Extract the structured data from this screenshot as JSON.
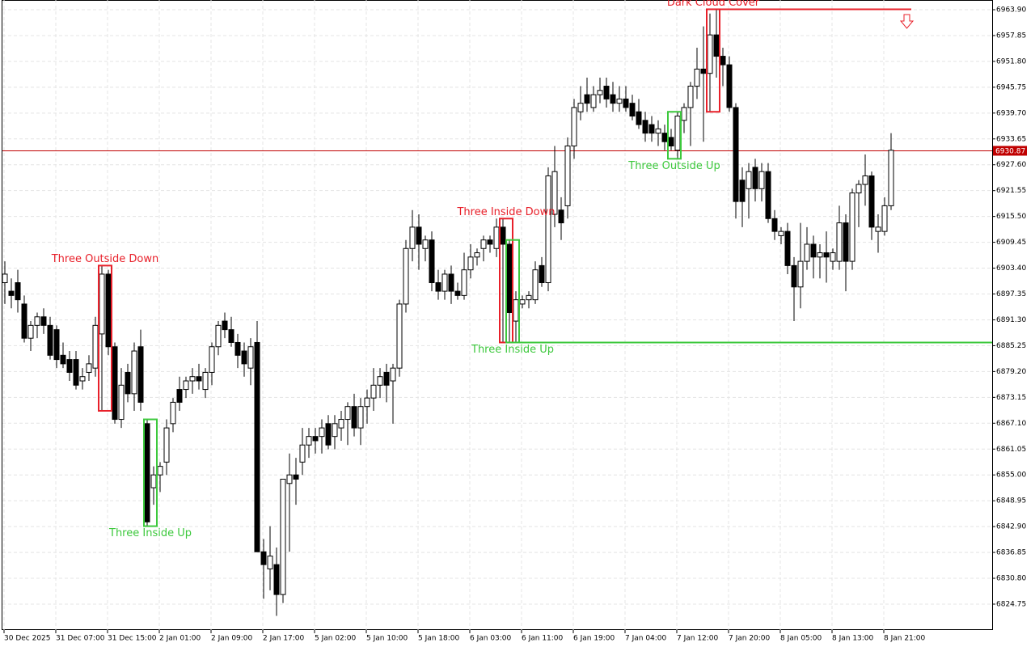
{
  "chart_data": {
    "type": "candlestick",
    "categories": [
      "30 Dec 2025",
      null,
      null,
      null,
      null,
      null,
      null,
      null,
      "31 Dec 07:00",
      null,
      null,
      null,
      null,
      null,
      null,
      null,
      "31 Dec 15:00",
      null,
      null,
      null,
      null,
      null,
      null,
      null,
      "2 Jan 01:00",
      null,
      null,
      null,
      null,
      null,
      null,
      null,
      "2 Jan 09:00",
      null,
      null,
      null,
      null,
      null,
      null,
      null,
      "2 Jan 17:00",
      null,
      null,
      null,
      null,
      null,
      null,
      null,
      "5 Jan 02:00",
      null,
      null,
      null,
      null,
      null,
      null,
      null,
      "5 Jan 10:00",
      null,
      null,
      null,
      null,
      null,
      null,
      null,
      "5 Jan 18:00",
      null,
      null,
      null,
      null,
      null,
      null,
      null,
      "6 Jan 03:00",
      null,
      null,
      null,
      null,
      null,
      null,
      null,
      "6 Jan 11:00",
      null,
      null,
      null,
      null,
      null,
      null,
      null,
      "6 Jan 19:00",
      null,
      null,
      null,
      null,
      null,
      null,
      null,
      "7 Jan 04:00",
      null,
      null,
      null,
      null,
      null,
      null,
      null,
      "7 Jan 12:00",
      null,
      null,
      null,
      null,
      null,
      null,
      null,
      "7 Jan 20:00",
      null,
      null,
      null,
      null,
      null,
      null,
      null,
      "8 Jan 05:00",
      null,
      null,
      null,
      null,
      null,
      null,
      null,
      "8 Jan 13:00",
      null,
      null,
      null,
      null,
      null,
      null,
      null,
      "8 Jan 21:00",
      null
    ],
    "ohlc": [
      [
        6900,
        6905,
        6895,
        6902
      ],
      [
        6898,
        6901,
        6894,
        6897
      ],
      [
        6900,
        6903,
        6893,
        6896
      ],
      [
        6895,
        6897,
        6886,
        6887
      ],
      [
        6887,
        6891,
        6884,
        6890
      ],
      [
        6890,
        6893,
        6887,
        6892
      ],
      [
        6892,
        6894,
        6888,
        6890
      ],
      [
        6890,
        6892,
        6882,
        6883
      ],
      [
        6889,
        6890,
        6880,
        6882
      ],
      [
        6883,
        6886,
        6880,
        6881
      ],
      [
        6882,
        6884,
        6877,
        6879
      ],
      [
        6882,
        6884,
        6875,
        6876
      ],
      [
        6877,
        6880,
        6875,
        6878
      ],
      [
        6879,
        6883,
        6877,
        6881
      ],
      [
        6880,
        6892,
        6878,
        6890
      ],
      [
        6888,
        6904,
        6870,
        6902
      ],
      [
        6902,
        6903,
        6883,
        6885
      ],
      [
        6885,
        6886,
        6867,
        6868
      ],
      [
        6868,
        6880,
        6866,
        6876
      ],
      [
        6879,
        6881,
        6872,
        6874
      ],
      [
        6874,
        6886,
        6870,
        6884
      ],
      [
        6885,
        6889,
        6870,
        6872
      ],
      [
        6867,
        6868,
        6843,
        6844
      ],
      [
        6852,
        6857,
        6848,
        6855
      ],
      [
        6855,
        6858,
        6851,
        6857
      ],
      [
        6858,
        6868,
        6855,
        6866
      ],
      [
        6867,
        6873,
        6865,
        6872
      ],
      [
        6875,
        6878,
        6870,
        6872
      ],
      [
        6875,
        6878,
        6873,
        6877
      ],
      [
        6877,
        6880,
        6874,
        6878
      ],
      [
        6878,
        6881,
        6875,
        6877
      ],
      [
        6875,
        6880,
        6873,
        6879
      ],
      [
        6879,
        6886,
        6876,
        6885
      ],
      [
        6885,
        6891,
        6883,
        6890
      ],
      [
        6891,
        6893,
        6887,
        6889
      ],
      [
        6889,
        6892,
        6885,
        6886
      ],
      [
        6886,
        6888,
        6880,
        6883
      ],
      [
        6884,
        6886,
        6878,
        6881
      ],
      [
        6880,
        6887,
        6876,
        6885
      ],
      [
        6886,
        6891,
        6837,
        6837
      ],
      [
        6837,
        6840,
        6826,
        6834
      ],
      [
        6833,
        6843,
        6828,
        6836
      ],
      [
        6834,
        6838,
        6822,
        6827
      ],
      [
        6827,
        6854,
        6825,
        6854
      ],
      [
        6853,
        6860,
        6837,
        6855
      ],
      [
        6855,
        6859,
        6848,
        6854
      ],
      [
        6858,
        6866,
        6855,
        6862
      ],
      [
        6862,
        6866,
        6859,
        6864
      ],
      [
        6864,
        6866,
        6860,
        6863
      ],
      [
        6864,
        6868,
        6860,
        6866
      ],
      [
        6867,
        6869,
        6861,
        6862
      ],
      [
        6864,
        6869,
        6861,
        6867
      ],
      [
        6866,
        6870,
        6863,
        6868
      ],
      [
        6868,
        6872,
        6862,
        6871
      ],
      [
        6871,
        6874,
        6864,
        6866
      ],
      [
        6866,
        6873,
        6862,
        6871
      ],
      [
        6871,
        6875,
        6867,
        6873
      ],
      [
        6873,
        6880,
        6870,
        6876
      ],
      [
        6876,
        6880,
        6873,
        6878
      ],
      [
        6879,
        6881,
        6872,
        6876
      ],
      [
        6877,
        6881,
        6867,
        6880
      ],
      [
        6880,
        6896,
        6878,
        6895
      ],
      [
        6895,
        6910,
        6893,
        6908
      ],
      [
        6908,
        6917,
        6905,
        6913
      ],
      [
        6913,
        6916,
        6903,
        6909
      ],
      [
        6908,
        6911,
        6905,
        6910
      ],
      [
        6910,
        6912,
        6898,
        6900
      ],
      [
        6900,
        6903,
        6896,
        6898
      ],
      [
        6898,
        6903,
        6896,
        6902
      ],
      [
        6902,
        6904,
        6895,
        6898
      ],
      [
        6898,
        6900,
        6896,
        6897
      ],
      [
        6897,
        6907,
        6896,
        6903
      ],
      [
        6903,
        6909,
        6901,
        6906
      ],
      [
        6906,
        6908,
        6904,
        6907
      ],
      [
        6908,
        6911,
        6905,
        6910
      ],
      [
        6910,
        6911,
        6907,
        6909
      ],
      [
        6908,
        6915,
        6906,
        6913
      ],
      [
        6913,
        6915,
        6886,
        6909
      ],
      [
        6909,
        6910,
        6886,
        6893
      ],
      [
        6891,
        6898,
        6886,
        6896
      ],
      [
        6895,
        6897,
        6894,
        6896
      ],
      [
        6896,
        6898,
        6894,
        6897
      ],
      [
        6896,
        6905,
        6895,
        6903
      ],
      [
        6904,
        6906,
        6899,
        6900
      ],
      [
        6900,
        6927,
        6898,
        6925
      ],
      [
        6916,
        6932,
        6913,
        6926
      ],
      [
        6917,
        6920,
        6910,
        6914
      ],
      [
        6918,
        6934,
        6915,
        6932
      ],
      [
        6932,
        6943,
        6929,
        6941
      ],
      [
        6940,
        6946,
        6938,
        6942
      ],
      [
        6944,
        6948,
        6940,
        6942
      ],
      [
        6941,
        6946,
        6940,
        6944
      ],
      [
        6944,
        6948,
        6942,
        6945
      ],
      [
        6946,
        6948,
        6941,
        6943
      ],
      [
        6944,
        6947,
        6940,
        6942
      ],
      [
        6942,
        6946,
        6940,
        6943
      ],
      [
        6943,
        6946,
        6940,
        6941
      ],
      [
        6942,
        6944,
        6938,
        6939
      ],
      [
        6940,
        6943,
        6936,
        6937
      ],
      [
        6938,
        6940,
        6933,
        6935
      ],
      [
        6937,
        6939,
        6933,
        6935
      ],
      [
        6935,
        6938,
        6932,
        6936
      ],
      [
        6935,
        6937,
        6931,
        6933
      ],
      [
        6934,
        6936,
        6931,
        6932
      ],
      [
        6931,
        6940,
        6929,
        6939
      ],
      [
        6938,
        6942,
        6935,
        6941
      ],
      [
        6941,
        6947,
        6932,
        6946
      ],
      [
        6946,
        6955,
        6943,
        6950
      ],
      [
        6950,
        6960,
        6933,
        6949
      ],
      [
        6949,
        6963,
        6940,
        6958
      ],
      [
        6958,
        6964,
        6948,
        6953
      ],
      [
        6953,
        6955,
        6946,
        6951
      ],
      [
        6951,
        6953,
        6940,
        6941
      ],
      [
        6941,
        6942,
        6915,
        6919
      ],
      [
        6924,
        6927,
        6913,
        6919
      ],
      [
        6922,
        6928,
        6915,
        6926
      ],
      [
        6927,
        6929,
        6919,
        6922
      ],
      [
        6922,
        6928,
        6919,
        6926
      ],
      [
        6926,
        6928,
        6914,
        6915
      ],
      [
        6915,
        6917,
        6910,
        6912
      ],
      [
        6911,
        6913,
        6909,
        6912
      ],
      [
        6912,
        6914,
        6902,
        6904
      ],
      [
        6904,
        6906,
        6891,
        6899
      ],
      [
        6899,
        6914,
        6894,
        6905
      ],
      [
        6905,
        6913,
        6903,
        6909
      ],
      [
        6909,
        6911,
        6901,
        6906
      ],
      [
        6906,
        6909,
        6901,
        6907
      ],
      [
        6907,
        6912,
        6900,
        6906
      ],
      [
        6905,
        6908,
        6903,
        6907
      ],
      [
        6905,
        6918,
        6903,
        6914
      ],
      [
        6914,
        6916,
        6898,
        6905
      ],
      [
        6905,
        6922,
        6903,
        6921
      ],
      [
        6921,
        6924,
        6913,
        6923
      ],
      [
        6923,
        6930,
        6918,
        6925
      ],
      [
        6925,
        6926,
        6910,
        6913
      ],
      [
        6912,
        6916,
        6907,
        6913
      ],
      [
        6912,
        6920,
        6911,
        6918
      ],
      [
        6918,
        6935,
        6917,
        6931
      ]
    ],
    "ylim": [
      6818.69,
      6966.17
    ],
    "yticks": [
      {
        "value": 6963.9,
        "label": "6963.90"
      },
      {
        "value": 6957.85,
        "label": "6957.85"
      },
      {
        "value": 6951.8,
        "label": "6951.80"
      },
      {
        "value": 6945.75,
        "label": "6945.75"
      },
      {
        "value": 6939.7,
        "label": "6939.70"
      },
      {
        "value": 6933.65,
        "label": "6933.65"
      },
      {
        "value": 6927.6,
        "label": "6927.60"
      },
      {
        "value": 6921.55,
        "label": "6921.55"
      },
      {
        "value": 6915.5,
        "label": "6915.50"
      },
      {
        "value": 6909.45,
        "label": "6909.45"
      },
      {
        "value": 6903.4,
        "label": "6903.40"
      },
      {
        "value": 6897.35,
        "label": "6897.35"
      },
      {
        "value": 6891.3,
        "label": "6891.30"
      },
      {
        "value": 6885.25,
        "label": "6885.25"
      },
      {
        "value": 6879.2,
        "label": "6879.20"
      },
      {
        "value": 6873.15,
        "label": "6873.15"
      },
      {
        "value": 6867.1,
        "label": "6867.10"
      },
      {
        "value": 6861.05,
        "label": "6861.05"
      },
      {
        "value": 6855,
        "label": "6855.00"
      },
      {
        "value": 6848.95,
        "label": "6848.95"
      },
      {
        "value": 6842.9,
        "label": "6842.90"
      },
      {
        "value": 6836.85,
        "label": "6836.85"
      },
      {
        "value": 6830.8,
        "label": "6830.80"
      },
      {
        "value": 6824.75,
        "label": "6824.75"
      }
    ],
    "price_line": {
      "value": 6930.87,
      "color": "#c00000"
    },
    "grid": true,
    "patterns": [
      {
        "label": "Three Outside Down",
        "color": "#e8202a"
      },
      {
        "label": "Three Inside Up",
        "color": "#3cc83c"
      },
      {
        "label": "Three Inside Down",
        "color": "#e8202a"
      },
      {
        "label": "Three Inside Up",
        "color": "#3cc83c"
      },
      {
        "label": "Three Outside Up",
        "color": "#3cc83c"
      },
      {
        "label": "Dark Cloud Cover",
        "color": "#e8202a"
      }
    ]
  }
}
